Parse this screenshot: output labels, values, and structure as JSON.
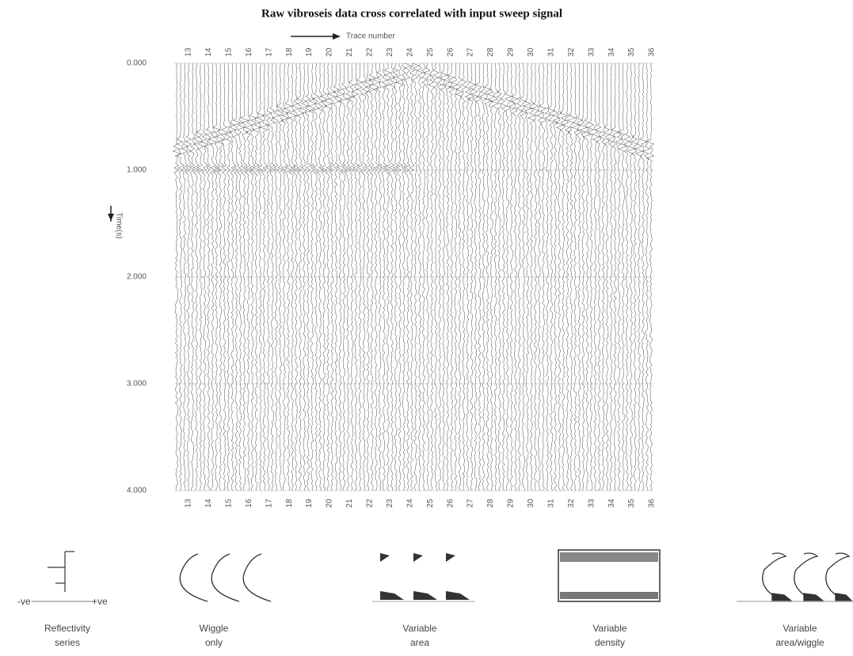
{
  "figure": {
    "title": "Raw vibroseis data cross correlated with input sweep signal",
    "x_label": "Trace number",
    "y_label": "Time(s)",
    "time_ticks": [
      "0.000",
      "1.000",
      "2.000",
      "3.000",
      "4.000"
    ],
    "trace_numbers": [
      "13",
      "14",
      "15",
      "16",
      "17",
      "18",
      "19",
      "20",
      "21",
      "22",
      "23",
      "24",
      "25",
      "26",
      "27",
      "28",
      "29",
      "30",
      "31",
      "32",
      "33",
      "34",
      "35",
      "36"
    ]
  },
  "panels": [
    {
      "label": "Reflectivity series",
      "axis_left": "-ve",
      "axis_right": "+ve"
    },
    {
      "label": "Wiggle only"
    },
    {
      "label": "Variable area"
    },
    {
      "label": "Variable density"
    },
    {
      "label": "Variable area/wiggle"
    }
  ]
}
